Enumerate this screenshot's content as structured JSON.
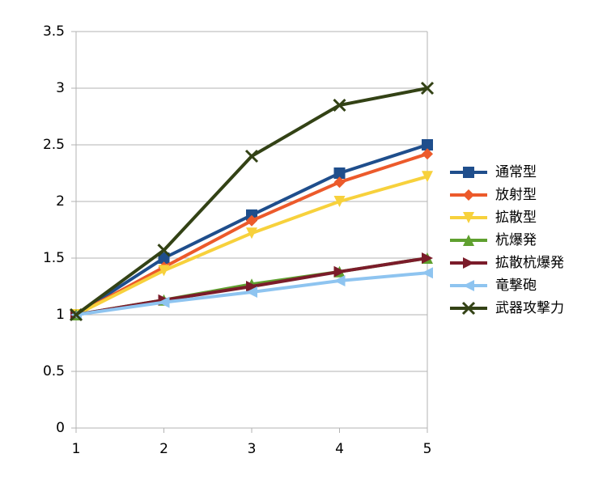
{
  "chart_data": {
    "type": "line",
    "x": [
      1,
      2,
      3,
      4,
      5
    ],
    "xlim": [
      1,
      5
    ],
    "xticks": [
      1,
      2,
      3,
      4,
      5
    ],
    "ylim": [
      0,
      3.5
    ],
    "yticks": [
      0,
      0.5,
      1,
      1.5,
      2,
      2.5,
      3,
      3.5
    ],
    "grid": true,
    "legend": "right",
    "series": [
      {
        "name": "通常型",
        "color": "#1f4e8c",
        "marker": "square",
        "values": [
          1,
          1.5,
          1.88,
          2.25,
          2.5
        ]
      },
      {
        "name": "放射型",
        "color": "#ec5a2b",
        "marker": "diamond",
        "values": [
          1,
          1.42,
          1.83,
          2.17,
          2.42
        ]
      },
      {
        "name": "拡散型",
        "color": "#f7d13c",
        "marker": "triangle-down",
        "values": [
          1,
          1.39,
          1.72,
          2.0,
          2.22
        ]
      },
      {
        "name": "杭爆発",
        "color": "#5fa02f",
        "marker": "triangle-up",
        "values": [
          1,
          1.13,
          1.27,
          1.38,
          1.5
        ]
      },
      {
        "name": "拡散杭爆発",
        "color": "#7b1c2a",
        "marker": "triangle-right",
        "values": [
          1,
          1.13,
          1.25,
          1.38,
          1.5
        ]
      },
      {
        "name": "竜撃砲",
        "color": "#8ec4f0",
        "marker": "triangle-left",
        "values": [
          1,
          1.11,
          1.2,
          1.3,
          1.37
        ]
      },
      {
        "name": "武器攻撃力",
        "color": "#334215",
        "marker": "x",
        "values": [
          1,
          1.57,
          2.4,
          2.85,
          3.0
        ]
      }
    ]
  }
}
